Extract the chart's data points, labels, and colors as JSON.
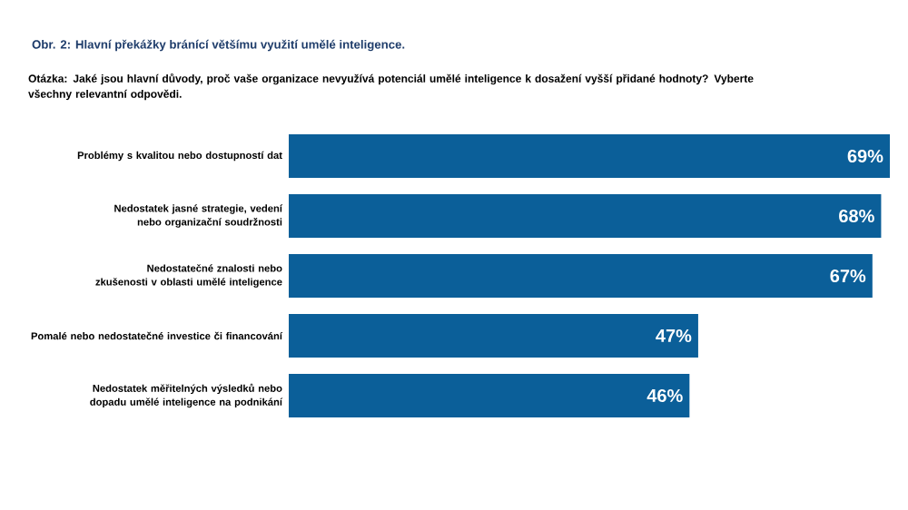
{
  "chart_data": {
    "type": "bar",
    "orientation": "horizontal",
    "title": "Obr. 2: Hlavní překážky bránící většímu využití umělé inteligence.",
    "subtitle": "Otázka: Jaké jsou hlavní důvody, proč vaše organizace nevyužívá potenciál umělé inteligence k dosažení vyšší přidané hodnoty? Vyberte všechny relevantní odpovědi.",
    "categories": [
      "Problémy s kvalitou nebo dostupností dat",
      "Nedostatek jasné strategie, vedení nebo organizační soudržnosti",
      "Nedostatečné znalosti nebo zkušenosti v oblasti umělé inteligence",
      "Pomalé nebo nedostatečné investice či financování",
      "Nedostatek měřitelných výsledků nebo dopadu umělé inteligence na podnikání"
    ],
    "values": [
      69,
      68,
      67,
      47,
      46
    ],
    "color": "#0b5f99",
    "value_labels": [
      "69%",
      "68%",
      "67%",
      "47%",
      "46%"
    ]
  }
}
